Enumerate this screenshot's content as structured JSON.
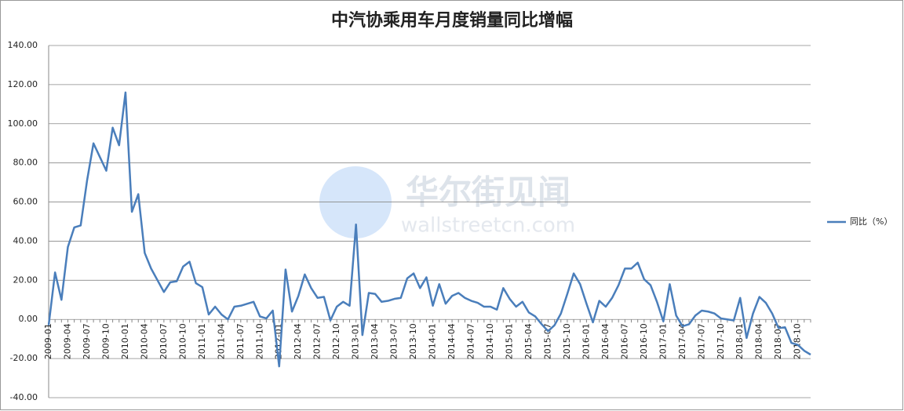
{
  "chart_data": {
    "type": "line",
    "title": "中汽协乘用车月度销量同比增幅",
    "watermark": [
      "华尔街见闻",
      "wallstreetcn.com"
    ],
    "categories": [
      "2009-01",
      null,
      null,
      "2009-04",
      null,
      null,
      "2009-07",
      null,
      null,
      "2009-10",
      null,
      null,
      "2010-01",
      null,
      null,
      "2010-04",
      null,
      null,
      "2010-07",
      null,
      null,
      "2010-10",
      null,
      null,
      "2011-01",
      null,
      null,
      "2011-04",
      null,
      null,
      "2011-07",
      null,
      null,
      "2011-10",
      null,
      null,
      "2012-01",
      null,
      null,
      "2012-04",
      null,
      null,
      "2012-07",
      null,
      null,
      "2012-10",
      null,
      null,
      "2013-01",
      null,
      null,
      "2013-04",
      null,
      null,
      "2013-07",
      null,
      null,
      "2013-10",
      null,
      null,
      "2014-01",
      null,
      null,
      "2014-04",
      null,
      null,
      "2014-07",
      null,
      null,
      "2014-10",
      null,
      null,
      "2015-01",
      null,
      null,
      "2015-04",
      null,
      null,
      "2015-07",
      null,
      null,
      "2015-10",
      null,
      null,
      "2016-01",
      null,
      null,
      "2016-04",
      null,
      null,
      "2016-07",
      null,
      null,
      "2016-10",
      null,
      null,
      "2017-01",
      null,
      null,
      "2017-04",
      null,
      null,
      "2017-07",
      null,
      null,
      "2017-10",
      null,
      null,
      "2018-01",
      null,
      null,
      "2018-04",
      null,
      null,
      "2018-07",
      null,
      null,
      "2018-10",
      null,
      null
    ],
    "series": [
      {
        "name": "同比（%）",
        "color": "#4a7ebb",
        "values": [
          -3,
          24,
          10,
          37,
          47,
          48,
          71,
          90,
          83,
          76,
          98,
          89,
          116,
          55,
          64,
          34,
          26,
          20,
          14,
          19,
          19.5,
          27,
          29.5,
          18.5,
          16.5,
          2.5,
          6.5,
          2.5,
          0,
          6.5,
          7,
          8,
          9,
          1.5,
          0.5,
          4.5,
          -24,
          25.5,
          4,
          12,
          23,
          16,
          11,
          11.5,
          -0.5,
          6.5,
          9,
          7,
          48.5,
          -8,
          13.5,
          13,
          9,
          9.5,
          10.5,
          11,
          21,
          23.5,
          16,
          21.5,
          7,
          18,
          8,
          12,
          13.5,
          11,
          9.5,
          8.5,
          6.5,
          6.5,
          5,
          16,
          10.5,
          6.5,
          9,
          3.5,
          1.5,
          -2.5,
          -6,
          -3,
          3,
          13,
          23.5,
          18,
          8,
          -1.5,
          9.5,
          6.5,
          11,
          17.5,
          26,
          26,
          29,
          20.5,
          17.5,
          9,
          -1,
          18,
          2,
          -3.5,
          -2.5,
          2,
          4.5,
          4,
          3,
          0.5,
          0,
          -0.5,
          11,
          -9.5,
          3,
          11.5,
          8.5,
          3,
          -4.5,
          -4,
          -12,
          -13,
          -16,
          -18
        ]
      }
    ],
    "ylim": [
      -40,
      140
    ],
    "yticks": [
      {
        "value": -40,
        "label": "-40.00"
      },
      {
        "value": -20,
        "label": "-20.00"
      },
      {
        "value": 0,
        "label": "0.00"
      },
      {
        "value": 20,
        "label": "20.00"
      },
      {
        "value": 40,
        "label": "40.00"
      },
      {
        "value": 60,
        "label": "60.00"
      },
      {
        "value": 80,
        "label": "80.00"
      },
      {
        "value": 100,
        "label": "100.00"
      },
      {
        "value": 120,
        "label": "120.00"
      },
      {
        "value": 140,
        "label": "140.00"
      }
    ],
    "grid": true,
    "legend": "right"
  }
}
